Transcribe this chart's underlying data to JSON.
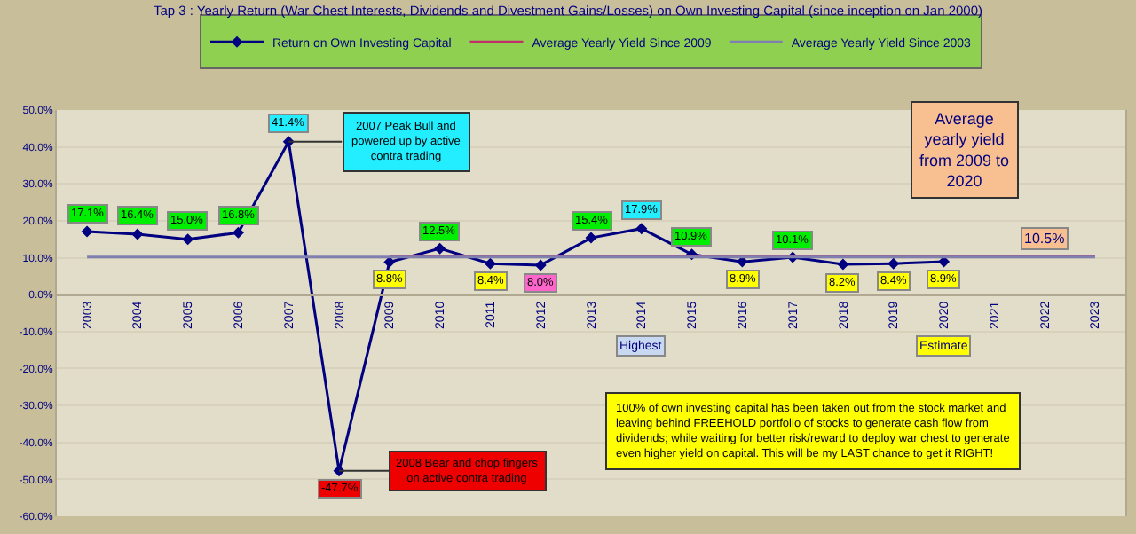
{
  "chart_data": {
    "type": "line",
    "title": "Tap 3 : Yearly Return (War Chest Interests, Dividends and Divestment Gains/Losses) on Own Investing Capital (since inception on Jan 2000)",
    "categories": [
      "2003",
      "2004",
      "2005",
      "2006",
      "2007",
      "2008",
      "2009",
      "2010",
      "2011",
      "2012",
      "2013",
      "2014",
      "2015",
      "2016",
      "2017",
      "2018",
      "2019",
      "2020",
      "2021",
      "2022",
      "2023"
    ],
    "series": [
      {
        "name": "Return on Own Investing Capital",
        "color": "#000080",
        "marker": "diamond",
        "values": [
          17.1,
          16.4,
          15.0,
          16.8,
          41.4,
          -47.7,
          8.8,
          12.5,
          8.4,
          8.0,
          15.4,
          17.9,
          10.9,
          8.9,
          10.1,
          8.2,
          8.4,
          8.9,
          null,
          null,
          null
        ],
        "value_labels": [
          "17.1%",
          "16.4%",
          "15.0%",
          "16.8%",
          "41.4%",
          "-47.7%",
          "8.8%",
          "12.5%",
          "8.4%",
          "8.0%",
          "15.4%",
          "17.9%",
          "10.9%",
          "8.9%",
          "10.1%",
          "8.2%",
          "8.4%",
          "8.9%",
          null,
          null,
          null
        ]
      },
      {
        "name": "Average Yearly Yield Since 2009",
        "color": "#c0306a",
        "values": [
          null,
          null,
          null,
          null,
          null,
          null,
          10.5,
          10.5,
          10.5,
          10.5,
          10.5,
          10.5,
          10.5,
          10.5,
          10.5,
          10.5,
          10.5,
          10.5,
          10.5,
          10.5,
          10.5
        ]
      },
      {
        "name": "Average Yearly Yield Since 2003",
        "color": "#8080b0",
        "values": [
          10.2,
          10.2,
          10.2,
          10.2,
          10.2,
          10.2,
          10.2,
          10.2,
          10.2,
          10.2,
          10.2,
          10.2,
          10.2,
          10.2,
          10.2,
          10.2,
          10.2,
          10.2,
          10.2,
          10.2,
          10.2
        ]
      }
    ],
    "ylim": [
      -60,
      50
    ],
    "yticks": [
      {
        "value": -60,
        "label": "-60.0%"
      },
      {
        "value": -50,
        "label": "-50.0%"
      },
      {
        "value": -40,
        "label": "-40.0%"
      },
      {
        "value": -30,
        "label": "-30.0%"
      },
      {
        "value": -20,
        "label": "-20.0%"
      },
      {
        "value": -10,
        "label": "-10.0%"
      },
      {
        "value": 0,
        "label": "0.0%"
      },
      {
        "value": 10,
        "label": "10.0%"
      },
      {
        "value": 20,
        "label": "20.0%"
      },
      {
        "value": 30,
        "label": "30.0%"
      },
      {
        "value": 40,
        "label": "40.0%"
      },
      {
        "value": 50,
        "label": "50.0%"
      }
    ],
    "grid": "y",
    "legend": "top",
    "line_style": "solid",
    "annotations": [
      {
        "text": "2007 Peak Bull and powered up by active contra trading",
        "x": "2007",
        "y": 41.4
      },
      {
        "text": "2008 Bear and chop fingers on active contra trading",
        "x": "2008",
        "y": -47.7
      },
      "Average yearly yield from 2009 to 2020",
      {
        "text": "10.5%",
        "x": "2022",
        "y": 10.5
      },
      "Highest",
      "Estimate",
      "100% of own investing capital has been taken out from the stock market and leaving behind FREEHOLD portfolio of stocks to generate cash flow from dividends; while waiting for better risk/reward to deploy war chest to generate even higher yield on capital. This will be my LAST chance to get it RIGHT!"
    ]
  }
}
